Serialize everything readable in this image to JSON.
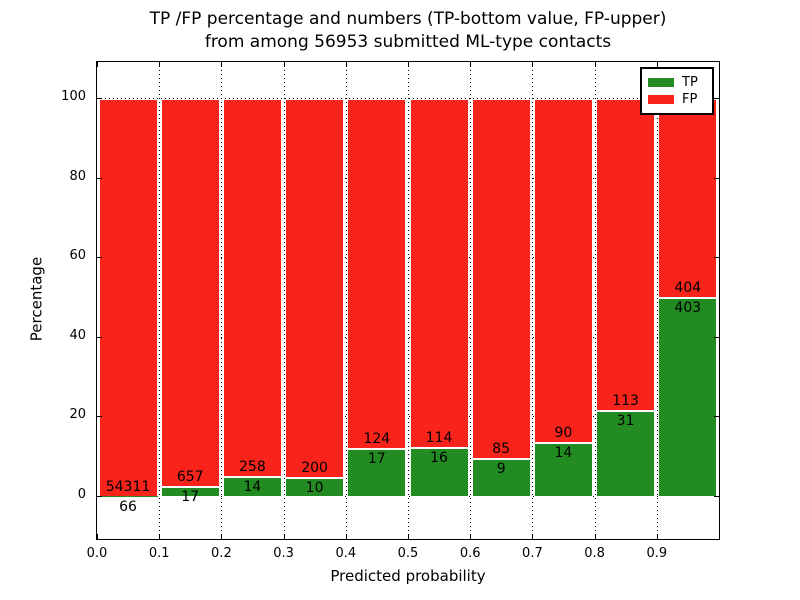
{
  "title": {
    "line1": "TP /FP percentage and numbers (TP-bottom value, FP-upper)",
    "line2": "from among 56953 submitted ML-type contacts"
  },
  "axes": {
    "xlabel": "Predicted probability",
    "ylabel": "Percentage",
    "xticks": [
      "0.0",
      "0.1",
      "0.2",
      "0.3",
      "0.4",
      "0.5",
      "0.6",
      "0.7",
      "0.8",
      "0.9"
    ],
    "yticks": [
      "0",
      "20",
      "40",
      "60",
      "80",
      "100"
    ]
  },
  "legend": {
    "items": [
      {
        "label": "TP",
        "color": "#228b22"
      },
      {
        "label": "FP",
        "color": "#f8241c"
      }
    ],
    "position": "upper right"
  },
  "colors": {
    "tp": "#228b22",
    "fp": "#f8241c",
    "grid": "#000000",
    "text": "#000000",
    "background": "#ffffff"
  },
  "chart_data": {
    "type": "bar",
    "stacked": true,
    "normalized": "each bar scaled to 100%",
    "title": "TP /FP percentage and numbers (TP-bottom value, FP-upper) from among 56953 submitted ML-type contacts",
    "xlabel": "Predicted probability",
    "ylabel": "Percentage",
    "x_bins": [
      "0.0-0.1",
      "0.1-0.2",
      "0.2-0.3",
      "0.3-0.4",
      "0.4-0.5",
      "0.5-0.6",
      "0.6-0.7",
      "0.7-0.8",
      "0.8-0.9",
      "0.9-1.0"
    ],
    "series": [
      {
        "name": "TP",
        "counts": [
          66,
          17,
          14,
          10,
          17,
          16,
          9,
          14,
          31,
          403
        ]
      },
      {
        "name": "FP",
        "counts": [
          54311,
          657,
          258,
          200,
          124,
          114,
          85,
          90,
          113,
          404
        ]
      }
    ],
    "tp_pct": [
      0.12,
      2.52,
      5.15,
      4.76,
      12.06,
      12.31,
      9.57,
      13.46,
      21.53,
      49.94
    ],
    "total_contacts": 56953,
    "xlim": [
      0.0,
      1.0
    ],
    "ylim_approx": [
      -10.5,
      109.5
    ],
    "grid": "dotted black",
    "legend_position": "upper right"
  }
}
